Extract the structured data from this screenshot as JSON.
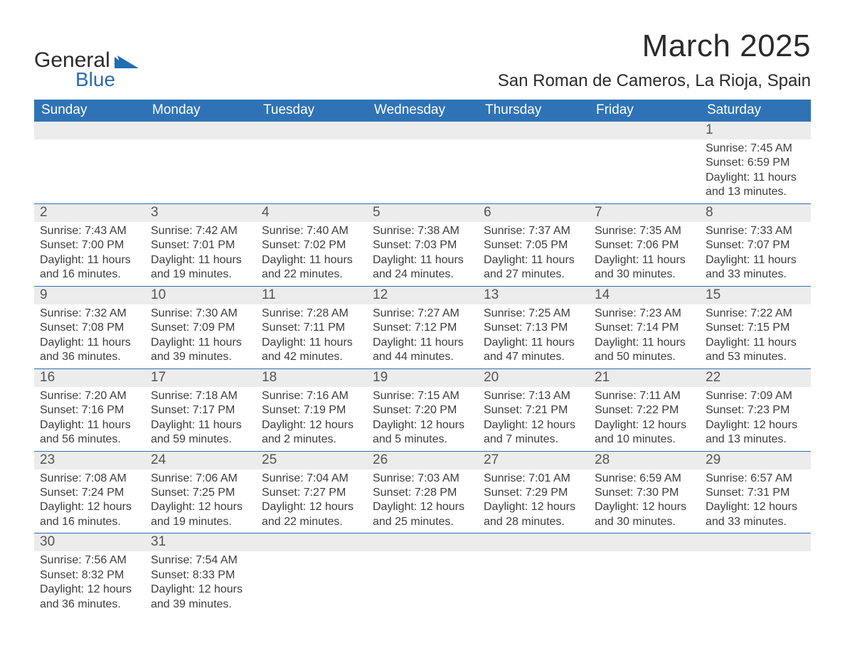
{
  "brand": {
    "name_part1": "General",
    "name_part2": "Blue",
    "icon_color": "#1f6db3"
  },
  "header": {
    "month_title": "March 2025",
    "location": "San Roman de Cameros, La Rioja, Spain"
  },
  "styling": {
    "header_bg": "#2f73b6",
    "header_text": "#ffffff",
    "daynum_bg": "#ececec",
    "cell_border_top": "#2f6fb0",
    "body_text": "#3c3c3c",
    "title_fontsize": 44,
    "location_fontsize": 24,
    "dayheader_fontsize": 19,
    "info_fontsize": 16
  },
  "day_headers": [
    "Sunday",
    "Monday",
    "Tuesday",
    "Wednesday",
    "Thursday",
    "Friday",
    "Saturday"
  ],
  "labels": {
    "sunrise": "Sunrise:",
    "sunset": "Sunset:",
    "daylight": "Daylight:"
  },
  "weeks": [
    [
      {
        "blank": true
      },
      {
        "blank": true
      },
      {
        "blank": true
      },
      {
        "blank": true
      },
      {
        "blank": true
      },
      {
        "blank": true
      },
      {
        "day": 1,
        "sunrise": "7:45 AM",
        "sunset": "6:59 PM",
        "daylight": "11 hours and 13 minutes."
      }
    ],
    [
      {
        "day": 2,
        "sunrise": "7:43 AM",
        "sunset": "7:00 PM",
        "daylight": "11 hours and 16 minutes."
      },
      {
        "day": 3,
        "sunrise": "7:42 AM",
        "sunset": "7:01 PM",
        "daylight": "11 hours and 19 minutes."
      },
      {
        "day": 4,
        "sunrise": "7:40 AM",
        "sunset": "7:02 PM",
        "daylight": "11 hours and 22 minutes."
      },
      {
        "day": 5,
        "sunrise": "7:38 AM",
        "sunset": "7:03 PM",
        "daylight": "11 hours and 24 minutes."
      },
      {
        "day": 6,
        "sunrise": "7:37 AM",
        "sunset": "7:05 PM",
        "daylight": "11 hours and 27 minutes."
      },
      {
        "day": 7,
        "sunrise": "7:35 AM",
        "sunset": "7:06 PM",
        "daylight": "11 hours and 30 minutes."
      },
      {
        "day": 8,
        "sunrise": "7:33 AM",
        "sunset": "7:07 PM",
        "daylight": "11 hours and 33 minutes."
      }
    ],
    [
      {
        "day": 9,
        "sunrise": "7:32 AM",
        "sunset": "7:08 PM",
        "daylight": "11 hours and 36 minutes."
      },
      {
        "day": 10,
        "sunrise": "7:30 AM",
        "sunset": "7:09 PM",
        "daylight": "11 hours and 39 minutes."
      },
      {
        "day": 11,
        "sunrise": "7:28 AM",
        "sunset": "7:11 PM",
        "daylight": "11 hours and 42 minutes."
      },
      {
        "day": 12,
        "sunrise": "7:27 AM",
        "sunset": "7:12 PM",
        "daylight": "11 hours and 44 minutes."
      },
      {
        "day": 13,
        "sunrise": "7:25 AM",
        "sunset": "7:13 PM",
        "daylight": "11 hours and 47 minutes."
      },
      {
        "day": 14,
        "sunrise": "7:23 AM",
        "sunset": "7:14 PM",
        "daylight": "11 hours and 50 minutes."
      },
      {
        "day": 15,
        "sunrise": "7:22 AM",
        "sunset": "7:15 PM",
        "daylight": "11 hours and 53 minutes."
      }
    ],
    [
      {
        "day": 16,
        "sunrise": "7:20 AM",
        "sunset": "7:16 PM",
        "daylight": "11 hours and 56 minutes."
      },
      {
        "day": 17,
        "sunrise": "7:18 AM",
        "sunset": "7:17 PM",
        "daylight": "11 hours and 59 minutes."
      },
      {
        "day": 18,
        "sunrise": "7:16 AM",
        "sunset": "7:19 PM",
        "daylight": "12 hours and 2 minutes."
      },
      {
        "day": 19,
        "sunrise": "7:15 AM",
        "sunset": "7:20 PM",
        "daylight": "12 hours and 5 minutes."
      },
      {
        "day": 20,
        "sunrise": "7:13 AM",
        "sunset": "7:21 PM",
        "daylight": "12 hours and 7 minutes."
      },
      {
        "day": 21,
        "sunrise": "7:11 AM",
        "sunset": "7:22 PM",
        "daylight": "12 hours and 10 minutes."
      },
      {
        "day": 22,
        "sunrise": "7:09 AM",
        "sunset": "7:23 PM",
        "daylight": "12 hours and 13 minutes."
      }
    ],
    [
      {
        "day": 23,
        "sunrise": "7:08 AM",
        "sunset": "7:24 PM",
        "daylight": "12 hours and 16 minutes."
      },
      {
        "day": 24,
        "sunrise": "7:06 AM",
        "sunset": "7:25 PM",
        "daylight": "12 hours and 19 minutes."
      },
      {
        "day": 25,
        "sunrise": "7:04 AM",
        "sunset": "7:27 PM",
        "daylight": "12 hours and 22 minutes."
      },
      {
        "day": 26,
        "sunrise": "7:03 AM",
        "sunset": "7:28 PM",
        "daylight": "12 hours and 25 minutes."
      },
      {
        "day": 27,
        "sunrise": "7:01 AM",
        "sunset": "7:29 PM",
        "daylight": "12 hours and 28 minutes."
      },
      {
        "day": 28,
        "sunrise": "6:59 AM",
        "sunset": "7:30 PM",
        "daylight": "12 hours and 30 minutes."
      },
      {
        "day": 29,
        "sunrise": "6:57 AM",
        "sunset": "7:31 PM",
        "daylight": "12 hours and 33 minutes."
      }
    ],
    [
      {
        "day": 30,
        "sunrise": "7:56 AM",
        "sunset": "8:32 PM",
        "daylight": "12 hours and 36 minutes."
      },
      {
        "day": 31,
        "sunrise": "7:54 AM",
        "sunset": "8:33 PM",
        "daylight": "12 hours and 39 minutes."
      },
      {
        "blank": true
      },
      {
        "blank": true
      },
      {
        "blank": true
      },
      {
        "blank": true
      },
      {
        "blank": true
      }
    ]
  ]
}
